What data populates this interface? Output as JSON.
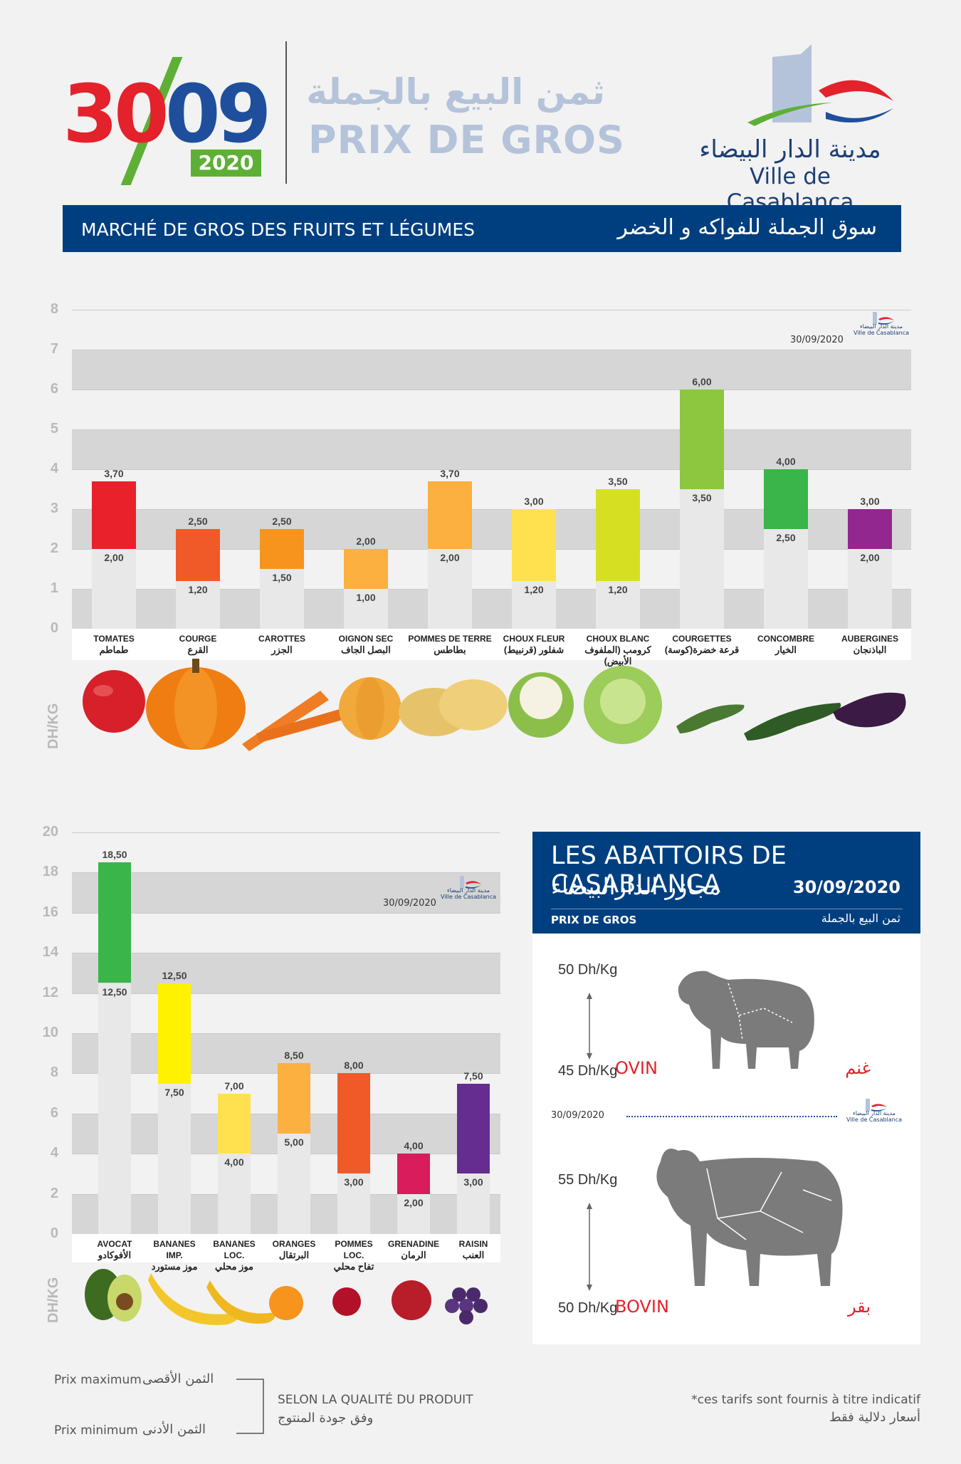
{
  "header": {
    "date_day": "30",
    "date_month": "09",
    "date_year": "2020",
    "title_ar": "ثمن البيع بالجملة",
    "title_fr": "PRIX DE GROS",
    "city_ar": "مدينة الدار البيضاء",
    "city_fr": "Ville de Casablanca"
  },
  "banner": {
    "title_fr": "MARCHÉ DE GROS DES FRUITS ET LÉGUMES",
    "title_ar": "سوق الجملة للفواكه و الخضر"
  },
  "unit_label": "DH/KG",
  "colors": {
    "navy": "#003f7f",
    "red": "#e3222c",
    "green": "#5db035",
    "band": "#d6d6d6"
  },
  "chart_data": [
    {
      "type": "bar",
      "name_in_figure": "vegetables",
      "stamp": "30/09/2020",
      "ylim": [
        0,
        8
      ],
      "yticks": [
        0,
        1,
        2,
        3,
        4,
        5,
        6,
        7,
        8
      ],
      "ylabel": "DH/KG",
      "items": [
        {
          "label_fr": "TOMATES",
          "label_ar": "طماطم",
          "min": 2.0,
          "max": 3.7,
          "min_label": "2,00",
          "max_label": "3,70",
          "color": "#e8212b"
        },
        {
          "label_fr": "COURGE",
          "label_ar": "القرع",
          "min": 1.2,
          "max": 2.5,
          "min_label": "1,20",
          "max_label": "2,50",
          "color": "#f05a28"
        },
        {
          "label_fr": "CAROTTES",
          "label_ar": "الجزر",
          "min": 1.5,
          "max": 2.5,
          "min_label": "1,50",
          "max_label": "2,50",
          "color": "#f7941e"
        },
        {
          "label_fr": "OIGNON SEC",
          "label_ar": "البصل الجاف",
          "min": 1.0,
          "max": 2.0,
          "min_label": "1,00",
          "max_label": "2,00",
          "color": "#fbb040"
        },
        {
          "label_fr": "POMMES DE TERRE",
          "label_ar": "بطاطس",
          "min": 2.0,
          "max": 3.7,
          "min_label": "2,00",
          "max_label": "3,70",
          "color": "#fbb040"
        },
        {
          "label_fr": "CHOUX FLEUR",
          "label_ar": "شفلور (قرنبيط)",
          "min": 1.2,
          "max": 3.0,
          "min_label": "1,20",
          "max_label": "3,00",
          "color": "#ffe14f"
        },
        {
          "label_fr": "CHOUX BLANC",
          "label_ar": "كرومب (الملفوف الأبيض)",
          "min": 1.2,
          "max": 3.5,
          "min_label": "1,20",
          "max_label": "3,50",
          "color": "#d7df23"
        },
        {
          "label_fr": "COURGETTES",
          "label_ar": "قرعة خضرة(كوسة)",
          "min": 3.5,
          "max": 6.0,
          "min_label": "3,50",
          "max_label": "6,00",
          "color": "#8dc63f"
        },
        {
          "label_fr": "CONCOMBRE",
          "label_ar": "الخيار",
          "min": 2.5,
          "max": 4.0,
          "min_label": "2,50",
          "max_label": "4,00",
          "color": "#39b54a"
        },
        {
          "label_fr": "AUBERGINES",
          "label_ar": "الباذنجان",
          "min": 2.0,
          "max": 3.0,
          "min_label": "2,00",
          "max_label": "3,00",
          "color": "#92278f"
        }
      ]
    },
    {
      "type": "bar",
      "name_in_figure": "fruits",
      "stamp": "30/09/2020",
      "ylim": [
        0,
        20
      ],
      "yticks": [
        0,
        2,
        4,
        6,
        8,
        10,
        12,
        14,
        16,
        18,
        20
      ],
      "ylabel": "DH/KG",
      "items": [
        {
          "label_fr": "AVOCAT",
          "label_ar": "الأفوكادو",
          "min": 12.5,
          "max": 18.5,
          "min_label": "12,50",
          "max_label": "18,50",
          "color": "#39b54a"
        },
        {
          "label_fr": "BANANES IMP.",
          "label_ar": "موز مستورد",
          "min": 7.5,
          "max": 12.5,
          "min_label": "7,50",
          "max_label": "12,50",
          "color": "#fff200"
        },
        {
          "label_fr": "BANANES LOC.",
          "label_ar": "موز محلي",
          "min": 4.0,
          "max": 7.0,
          "min_label": "4,00",
          "max_label": "7,00",
          "color": "#ffe14f"
        },
        {
          "label_fr": "ORANGES",
          "label_ar": "البرتقال",
          "min": 5.0,
          "max": 8.5,
          "min_label": "5,00",
          "max_label": "8,50",
          "color": "#fbb040"
        },
        {
          "label_fr": "POMMES LOC.",
          "label_ar": "تفاح محلي",
          "min": 3.0,
          "max": 8.0,
          "min_label": "3,00",
          "max_label": "8,00",
          "color": "#f05a28"
        },
        {
          "label_fr": "GRENADINE",
          "label_ar": "الرمان",
          "min": 2.0,
          "max": 4.0,
          "min_label": "2,00",
          "max_label": "4,00",
          "color": "#d91c5c"
        },
        {
          "label_fr": "RAISIN",
          "label_ar": "العنب",
          "min": 3.0,
          "max": 7.5,
          "min_label": "3,00",
          "max_label": "7,50",
          "color": "#662d91"
        }
      ]
    }
  ],
  "abattoirs": {
    "title_fr": "LES ABATTOIRS DE CASABLANCA",
    "title_ar": "مجازر الدارالبيضاء",
    "date": "30/09/2020",
    "sub_fr": "PRIX DE GROS",
    "sub_ar": "ثمن البيع بالجملة",
    "stamp": "30/09/2020",
    "ovin": {
      "name_fr": "OVIN",
      "name_ar": "غنم",
      "max": "50 Dh/Kg",
      "min": "45 Dh/Kg"
    },
    "bovin": {
      "name_fr": "BOVIN",
      "name_ar": "بقر",
      "max": "55 Dh/Kg",
      "min": "50 Dh/Kg"
    }
  },
  "legend": {
    "max_fr": "Prix maximum",
    "max_ar": "الثمن الأقصى",
    "min_fr": "Prix minimum",
    "min_ar": "الثمن الأدنى",
    "quality_fr": "SELON LA QUALITÉ DU PRODUIT",
    "quality_ar": "وفق جودة المنتوج"
  },
  "footnote": {
    "fr": "*ces tarifs sont fournis à titre indicatif",
    "ar": "أسعار دلالية فقط"
  },
  "mini_logo": {
    "ar": "مدينة الدار البيضاء",
    "fr": "Ville de Casablanca"
  }
}
